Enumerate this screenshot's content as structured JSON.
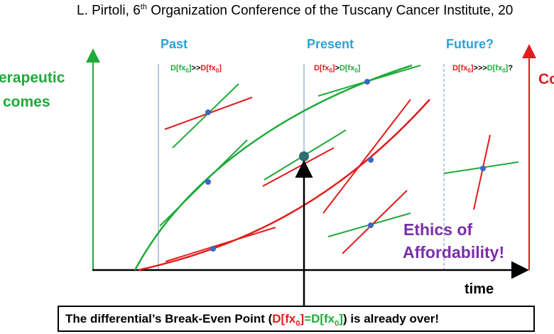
{
  "header": {
    "parts": [
      "L. Pirtoli, 6",
      "th",
      "Organization Conference of the Tuscany Cancer Institute, 20"
    ]
  },
  "left_label": [
    "erapeutic",
    "comes"
  ],
  "right_label": "Co",
  "columns": [
    {
      "title": "Past",
      "formula": [
        "D[fx",
        "0",
        "]",
        ">>",
        "D[fx",
        "0",
        "]"
      ]
    },
    {
      "title": "Present",
      "formula": [
        "D[fx",
        "0",
        "]",
        ">",
        "D[fx",
        "0",
        "]"
      ]
    },
    {
      "title": "Future?",
      "formula": [
        "D[fx",
        "0",
        "]",
        ">>>",
        "D[fx",
        "0",
        "]",
        "?"
      ]
    }
  ],
  "ethics": [
    "Ethics of",
    "Affordability!"
  ],
  "x_label": "time",
  "footer": [
    "The differential’s Break-Even Point (",
    "D[fx",
    "0",
    "]",
    "=",
    "D[fx",
    "0",
    "]",
    ") is already over!"
  ]
}
